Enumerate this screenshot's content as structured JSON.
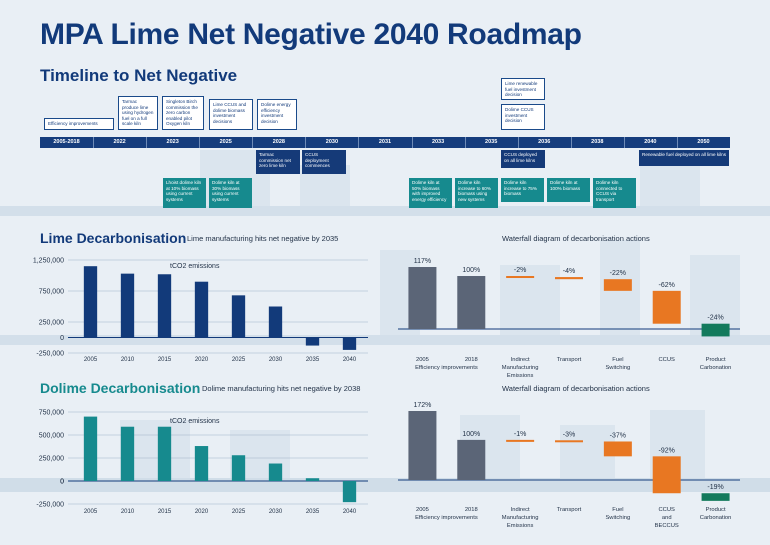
{
  "title": "MPA Lime Net Negative 2040 Roadmap",
  "timeline": {
    "heading": "Timeline to Net Negative",
    "years": [
      "2005-2018",
      "2022",
      "2023",
      "2025",
      "2028",
      "2030",
      "2031",
      "2033",
      "2035",
      "2036",
      "2038",
      "2040",
      "2050"
    ],
    "events": {
      "efficiency": "Efficiency improvements",
      "tarmac_hydrogen": "Tarmac produce lime using hydrogen fuel on a full scale kiln",
      "singleton": "Singleton Birch commission the zero carbon enabled pilot Oxygen kiln",
      "lime_ccus": "Lime CCUS and dolime biomass investment decisions",
      "dolime_energy": "Dolime energy efficiency investment decision",
      "lime_renewable": "Lime renewable fuel investment decision",
      "dolime_ccus": "Dolime CCUS investment decision",
      "tarmac_commission": "Tarmac commission net zero lime kiln",
      "ccus_deployment": "CCUS deployment commences",
      "ccus_deployed": "CCUS deployed on all lime kilns",
      "renewable_deployed": "Renewable fuel deployed on all lime kilns",
      "lhoist": "Lhoist dolime kiln at 10% biomass using current systems",
      "dolime30": "Dolime kiln at 30% biomass using current systems",
      "dolime50": "Dolime kiln at 50% biomass with improved energy efficiency",
      "dolime60": "Dolime kiln increase to 60% biomass using new systems",
      "dolime75": "Dolime kiln increase to 75% biomass",
      "dolime100": "Dolime kiln at 100% biomass",
      "dolime_connected": "Dolime kiln connected to CCUS via transport"
    }
  },
  "lime": {
    "heading": "Lime Decarbonisation",
    "subtitle": "Lime manufacturing hits net negative by 2035",
    "waterfall_title": "Waterfall diagram of decarbonisation actions"
  },
  "dolime": {
    "heading": "Dolime Decarbonisation",
    "subtitle": "Dolime manufacturing hits net negative by 2038",
    "waterfall_title": "Waterfall diagram of decarbonisation actions"
  },
  "colors": {
    "navy": "#123a7a",
    "teal": "#168a8e",
    "grey": "#5b6577",
    "orange": "#e87722",
    "green": "#137a5c"
  },
  "chart_data": [
    {
      "id": "lime-bar",
      "type": "bar",
      "title": "Lime Decarbonisation",
      "inner_label": "tCO2 emissions",
      "categories": [
        "2005",
        "2010",
        "2015",
        "2020",
        "2025",
        "2030",
        "2035",
        "2040"
      ],
      "values": [
        1150000,
        1030000,
        1020000,
        900000,
        680000,
        500000,
        -130000,
        -200000
      ],
      "ylim": [
        -250000,
        1250000
      ],
      "yticks": [
        -250000,
        250000,
        750000,
        1250000
      ],
      "ytick_labels": [
        "-250,000",
        "250,000",
        "750,000",
        "1,250,000"
      ],
      "color": "#123a7a"
    },
    {
      "id": "lime-waterfall",
      "type": "waterfall",
      "title": "Waterfall diagram of decarbonisation actions",
      "ylim": [
        -24,
        117
      ],
      "steps": [
        {
          "label": "2005",
          "sub": "Efficiency improvements",
          "kind": "total",
          "value": 117,
          "text": "117%"
        },
        {
          "label": "2018",
          "kind": "total",
          "value": 100,
          "text": "100%"
        },
        {
          "label": "Indirect Manufacturing Emissions",
          "kind": "delta",
          "value": -2,
          "text": "-2%"
        },
        {
          "label": "Transport",
          "kind": "delta",
          "value": -4,
          "text": "-4%"
        },
        {
          "label": "Fuel Switching",
          "kind": "delta",
          "value": -22,
          "text": "-22%"
        },
        {
          "label": "CCUS",
          "kind": "delta",
          "value": -62,
          "text": "-62%"
        },
        {
          "label": "Product Carbonation",
          "kind": "delta",
          "value": -24,
          "text": "-24%"
        }
      ]
    },
    {
      "id": "dolime-bar",
      "type": "bar",
      "title": "Dolime Decarbonisation",
      "inner_label": "tCO2 emissions",
      "categories": [
        "2005",
        "2010",
        "2015",
        "2020",
        "2025",
        "2030",
        "2035",
        "2040"
      ],
      "values": [
        700000,
        590000,
        590000,
        380000,
        280000,
        190000,
        30000,
        -230000
      ],
      "ylim": [
        -250000,
        750000
      ],
      "yticks": [
        -250000,
        0,
        250000,
        500000,
        750000
      ],
      "ytick_labels": [
        "-250,000",
        "0",
        "250,000",
        "500,000",
        "750,000"
      ],
      "color": "#168a8e"
    },
    {
      "id": "dolime-waterfall",
      "type": "waterfall",
      "title": "Waterfall diagram of decarbonisation actions",
      "ylim": [
        -19,
        172
      ],
      "steps": [
        {
          "label": "2005",
          "sub": "Efficiency improvements",
          "kind": "total",
          "value": 172,
          "text": "172%"
        },
        {
          "label": "2018",
          "kind": "total",
          "value": 100,
          "text": "100%"
        },
        {
          "label": "Indirect Manufacturing Emissions",
          "kind": "delta",
          "value": -1,
          "text": "-1%"
        },
        {
          "label": "Transport",
          "kind": "delta",
          "value": -3,
          "text": "-3%"
        },
        {
          "label": "Fuel Switching",
          "kind": "delta",
          "value": -37,
          "text": "-37%"
        },
        {
          "label": "CCUS and BECCUS",
          "kind": "delta",
          "value": -92,
          "text": "-92%"
        },
        {
          "label": "Product Carbonation",
          "kind": "delta",
          "value": -19,
          "text": "-19%"
        }
      ]
    }
  ]
}
